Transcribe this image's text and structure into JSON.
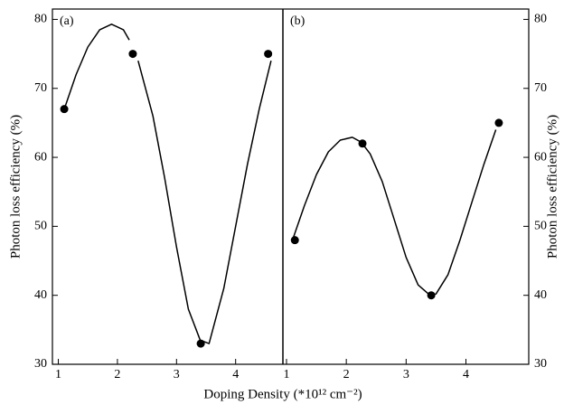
{
  "chart_data": [
    {
      "type": "scatter",
      "panel_label": "(a)",
      "xlabel": "Doping Density (*10¹² cm⁻²)",
      "ylabel": "Photon loss efficiency (%)",
      "x": [
        1.1,
        2.26,
        3.41,
        4.55
      ],
      "values": [
        67,
        75,
        33,
        75
      ],
      "color": "#000000",
      "fit_x": [
        1.1,
        1.3,
        1.5,
        1.7,
        1.9,
        2.1,
        2.2,
        null,
        2.35,
        2.6,
        2.8,
        3.0,
        3.2,
        3.4,
        3.55,
        3.8,
        4.0,
        4.2,
        4.4,
        4.6
      ],
      "fit_values": [
        67,
        72,
        76,
        78.5,
        79.3,
        78.5,
        77,
        null,
        74,
        66,
        57,
        47,
        38,
        33.5,
        33,
        41,
        50,
        59,
        67,
        74
      ],
      "xlim": [
        0.9,
        4.8
      ],
      "ylim": [
        30,
        81.5
      ],
      "xticks": [
        1,
        2,
        3,
        4
      ],
      "yticks": [
        30,
        40,
        50,
        60,
        70,
        80
      ],
      "y_axis_side": "left"
    },
    {
      "type": "scatter",
      "panel_label": "(b)",
      "ylabel": "Photon loss efficiency (%)",
      "x": [
        1.14,
        2.27,
        3.42,
        4.55
      ],
      "values": [
        48,
        62,
        40,
        65
      ],
      "color": "#000000",
      "fit_x": [
        1.1,
        1.3,
        1.5,
        1.7,
        1.9,
        2.1,
        2.25,
        2.4,
        2.6,
        2.8,
        3.0,
        3.2,
        3.4,
        3.5,
        3.7,
        3.9,
        4.1,
        4.3,
        4.5
      ],
      "fit_values": [
        48,
        53,
        57.5,
        60.8,
        62.5,
        62.9,
        62.2,
        60.5,
        56.5,
        51,
        45.5,
        41.5,
        40,
        40.2,
        43,
        48,
        53.5,
        59,
        64
      ],
      "xlim": [
        0.94,
        5.05
      ],
      "ylim": [
        30,
        81.5
      ],
      "xticks": [
        1,
        2,
        3,
        4
      ],
      "yticks": [
        30,
        40,
        50,
        60,
        70,
        80
      ],
      "y_axis_side": "right"
    }
  ]
}
